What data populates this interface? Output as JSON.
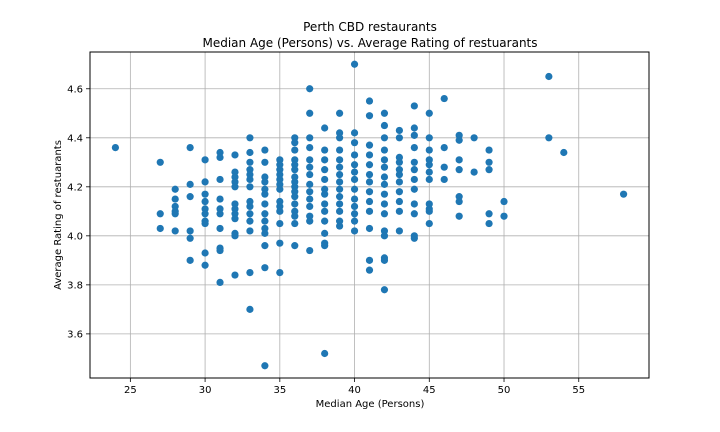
{
  "chart_data": {
    "type": "scatter",
    "title": "Perth CBD restaurants",
    "subtitle": "Median Age (Persons) vs. Average Rating of restuarants",
    "xlabel": "Median Age (Persons)",
    "ylabel": "Average Rating of restuarants",
    "xlim": [
      22.3,
      59.7
    ],
    "ylim": [
      3.42,
      4.75
    ],
    "xticks": [
      25,
      30,
      35,
      40,
      45,
      50,
      55
    ],
    "yticks": [
      3.6,
      3.8,
      4.0,
      4.2,
      4.4,
      4.6
    ],
    "grid": true,
    "marker_color": "#1f77b4",
    "points": [
      [
        24,
        4.36
      ],
      [
        27,
        4.3
      ],
      [
        27,
        4.09
      ],
      [
        27,
        4.03
      ],
      [
        28,
        4.19
      ],
      [
        28,
        4.15
      ],
      [
        28,
        4.12
      ],
      [
        28,
        4.1
      ],
      [
        28,
        4.09
      ],
      [
        28,
        4.02
      ],
      [
        29,
        4.36
      ],
      [
        29,
        4.21
      ],
      [
        29,
        4.16
      ],
      [
        29,
        4.02
      ],
      [
        29,
        3.99
      ],
      [
        29,
        3.9
      ],
      [
        30,
        4.31
      ],
      [
        30,
        4.22
      ],
      [
        30,
        4.17
      ],
      [
        30,
        4.14
      ],
      [
        30,
        4.11
      ],
      [
        30,
        4.09
      ],
      [
        30,
        4.06
      ],
      [
        30,
        4.05
      ],
      [
        30,
        3.93
      ],
      [
        30,
        3.88
      ],
      [
        31,
        4.34
      ],
      [
        31,
        4.32
      ],
      [
        31,
        4.23
      ],
      [
        31,
        4.15
      ],
      [
        31,
        4.11
      ],
      [
        31,
        4.09
      ],
      [
        31,
        4.03
      ],
      [
        31,
        3.95
      ],
      [
        31,
        3.94
      ],
      [
        31,
        3.81
      ],
      [
        32,
        4.33
      ],
      [
        32,
        4.26
      ],
      [
        32,
        4.24
      ],
      [
        32,
        4.22
      ],
      [
        32,
        4.2
      ],
      [
        32,
        4.13
      ],
      [
        32,
        4.11
      ],
      [
        32,
        4.09
      ],
      [
        32,
        4.07
      ],
      [
        32,
        4.01
      ],
      [
        32,
        4.0
      ],
      [
        32,
        3.84
      ],
      [
        33,
        4.4
      ],
      [
        33,
        4.34
      ],
      [
        33,
        4.3
      ],
      [
        33,
        4.27
      ],
      [
        33,
        4.25
      ],
      [
        33,
        4.23
      ],
      [
        33,
        4.2
      ],
      [
        33,
        4.14
      ],
      [
        33,
        4.12
      ],
      [
        33,
        4.09
      ],
      [
        33,
        4.06
      ],
      [
        33,
        4.02
      ],
      [
        33,
        3.85
      ],
      [
        33,
        3.7
      ],
      [
        34,
        4.35
      ],
      [
        34,
        4.3
      ],
      [
        34,
        4.24
      ],
      [
        34,
        4.22
      ],
      [
        34,
        4.19
      ],
      [
        34,
        4.17
      ],
      [
        34,
        4.13
      ],
      [
        34,
        4.09
      ],
      [
        34,
        4.06
      ],
      [
        34,
        4.03
      ],
      [
        34,
        4.01
      ],
      [
        34,
        3.96
      ],
      [
        34,
        3.87
      ],
      [
        34,
        3.47
      ],
      [
        35,
        4.31
      ],
      [
        35,
        4.29
      ],
      [
        35,
        4.27
      ],
      [
        35,
        4.25
      ],
      [
        35,
        4.23
      ],
      [
        35,
        4.21
      ],
      [
        35,
        4.19
      ],
      [
        35,
        4.14
      ],
      [
        35,
        4.12
      ],
      [
        35,
        4.1
      ],
      [
        35,
        4.05
      ],
      [
        35,
        3.97
      ],
      [
        35,
        3.85
      ],
      [
        36,
        4.4
      ],
      [
        36,
        4.38
      ],
      [
        36,
        4.35
      ],
      [
        36,
        4.31
      ],
      [
        36,
        4.29
      ],
      [
        36,
        4.27
      ],
      [
        36,
        4.24
      ],
      [
        36,
        4.22
      ],
      [
        36,
        4.2
      ],
      [
        36,
        4.18
      ],
      [
        36,
        4.16
      ],
      [
        36,
        4.13
      ],
      [
        36,
        4.1
      ],
      [
        36,
        4.08
      ],
      [
        36,
        4.05
      ],
      [
        36,
        3.96
      ],
      [
        37,
        4.6
      ],
      [
        37,
        4.5
      ],
      [
        37,
        4.4
      ],
      [
        37,
        4.36
      ],
      [
        37,
        4.31
      ],
      [
        37,
        4.28
      ],
      [
        37,
        4.25
      ],
      [
        37,
        4.21
      ],
      [
        37,
        4.18
      ],
      [
        37,
        4.15
      ],
      [
        37,
        4.12
      ],
      [
        37,
        4.08
      ],
      [
        37,
        4.06
      ],
      [
        37,
        3.94
      ],
      [
        38,
        4.44
      ],
      [
        38,
        4.35
      ],
      [
        38,
        4.31
      ],
      [
        38,
        4.27
      ],
      [
        38,
        4.23
      ],
      [
        38,
        4.19
      ],
      [
        38,
        4.17
      ],
      [
        38,
        4.13
      ],
      [
        38,
        4.1
      ],
      [
        38,
        4.06
      ],
      [
        38,
        4.01
      ],
      [
        38,
        3.97
      ],
      [
        38,
        3.96
      ],
      [
        38,
        3.52
      ],
      [
        39,
        4.5
      ],
      [
        39,
        4.42
      ],
      [
        39,
        4.4
      ],
      [
        39,
        4.35
      ],
      [
        39,
        4.31
      ],
      [
        39,
        4.28
      ],
      [
        39,
        4.25
      ],
      [
        39,
        4.22
      ],
      [
        39,
        4.19
      ],
      [
        39,
        4.16
      ],
      [
        39,
        4.13
      ],
      [
        39,
        4.1
      ],
      [
        39,
        4.06
      ],
      [
        39,
        4.04
      ],
      [
        40,
        4.7
      ],
      [
        40,
        4.42
      ],
      [
        40,
        4.38
      ],
      [
        40,
        4.33
      ],
      [
        40,
        4.29
      ],
      [
        40,
        4.26
      ],
      [
        40,
        4.23
      ],
      [
        40,
        4.19
      ],
      [
        40,
        4.15
      ],
      [
        40,
        4.12
      ],
      [
        40,
        4.09
      ],
      [
        40,
        4.06
      ],
      [
        40,
        4.02
      ],
      [
        41,
        4.55
      ],
      [
        41,
        4.49
      ],
      [
        41,
        4.37
      ],
      [
        41,
        4.33
      ],
      [
        41,
        4.29
      ],
      [
        41,
        4.25
      ],
      [
        41,
        4.22
      ],
      [
        41,
        4.18
      ],
      [
        41,
        4.14
      ],
      [
        41,
        4.1
      ],
      [
        41,
        4.03
      ],
      [
        41,
        3.9
      ],
      [
        41,
        3.86
      ],
      [
        42,
        4.5
      ],
      [
        42,
        4.45
      ],
      [
        42,
        4.4
      ],
      [
        42,
        4.35
      ],
      [
        42,
        4.31
      ],
      [
        42,
        4.28
      ],
      [
        42,
        4.24
      ],
      [
        42,
        4.21
      ],
      [
        42,
        4.17
      ],
      [
        42,
        4.13
      ],
      [
        42,
        4.09
      ],
      [
        42,
        4.02
      ],
      [
        42,
        4.0
      ],
      [
        42,
        3.91
      ],
      [
        42,
        3.9
      ],
      [
        42,
        3.78
      ],
      [
        43,
        4.43
      ],
      [
        43,
        4.4
      ],
      [
        43,
        4.32
      ],
      [
        43,
        4.3
      ],
      [
        43,
        4.27
      ],
      [
        43,
        4.25
      ],
      [
        43,
        4.22
      ],
      [
        43,
        4.18
      ],
      [
        43,
        4.14
      ],
      [
        43,
        4.1
      ],
      [
        43,
        4.02
      ],
      [
        44,
        4.53
      ],
      [
        44,
        4.44
      ],
      [
        44,
        4.41
      ],
      [
        44,
        4.36
      ],
      [
        44,
        4.3
      ],
      [
        44,
        4.27
      ],
      [
        44,
        4.23
      ],
      [
        44,
        4.19
      ],
      [
        44,
        4.13
      ],
      [
        44,
        4.09
      ],
      [
        44,
        4.0
      ],
      [
        44,
        3.99
      ],
      [
        45,
        4.5
      ],
      [
        45,
        4.4
      ],
      [
        45,
        4.35
      ],
      [
        45,
        4.31
      ],
      [
        45,
        4.29
      ],
      [
        45,
        4.26
      ],
      [
        45,
        4.23
      ],
      [
        45,
        4.13
      ],
      [
        45,
        4.11
      ],
      [
        45,
        4.1
      ],
      [
        45,
        4.05
      ],
      [
        46,
        4.56
      ],
      [
        46,
        4.36
      ],
      [
        46,
        4.28
      ],
      [
        46,
        4.23
      ],
      [
        47,
        4.41
      ],
      [
        47,
        4.39
      ],
      [
        47,
        4.31
      ],
      [
        47,
        4.27
      ],
      [
        47,
        4.16
      ],
      [
        47,
        4.14
      ],
      [
        47,
        4.08
      ],
      [
        48,
        4.4
      ],
      [
        48,
        4.26
      ],
      [
        49,
        4.35
      ],
      [
        49,
        4.3
      ],
      [
        49,
        4.27
      ],
      [
        49,
        4.09
      ],
      [
        49,
        4.05
      ],
      [
        50,
        4.14
      ],
      [
        50,
        4.08
      ],
      [
        53,
        4.65
      ],
      [
        53,
        4.4
      ],
      [
        54,
        4.34
      ],
      [
        58,
        4.17
      ]
    ]
  }
}
